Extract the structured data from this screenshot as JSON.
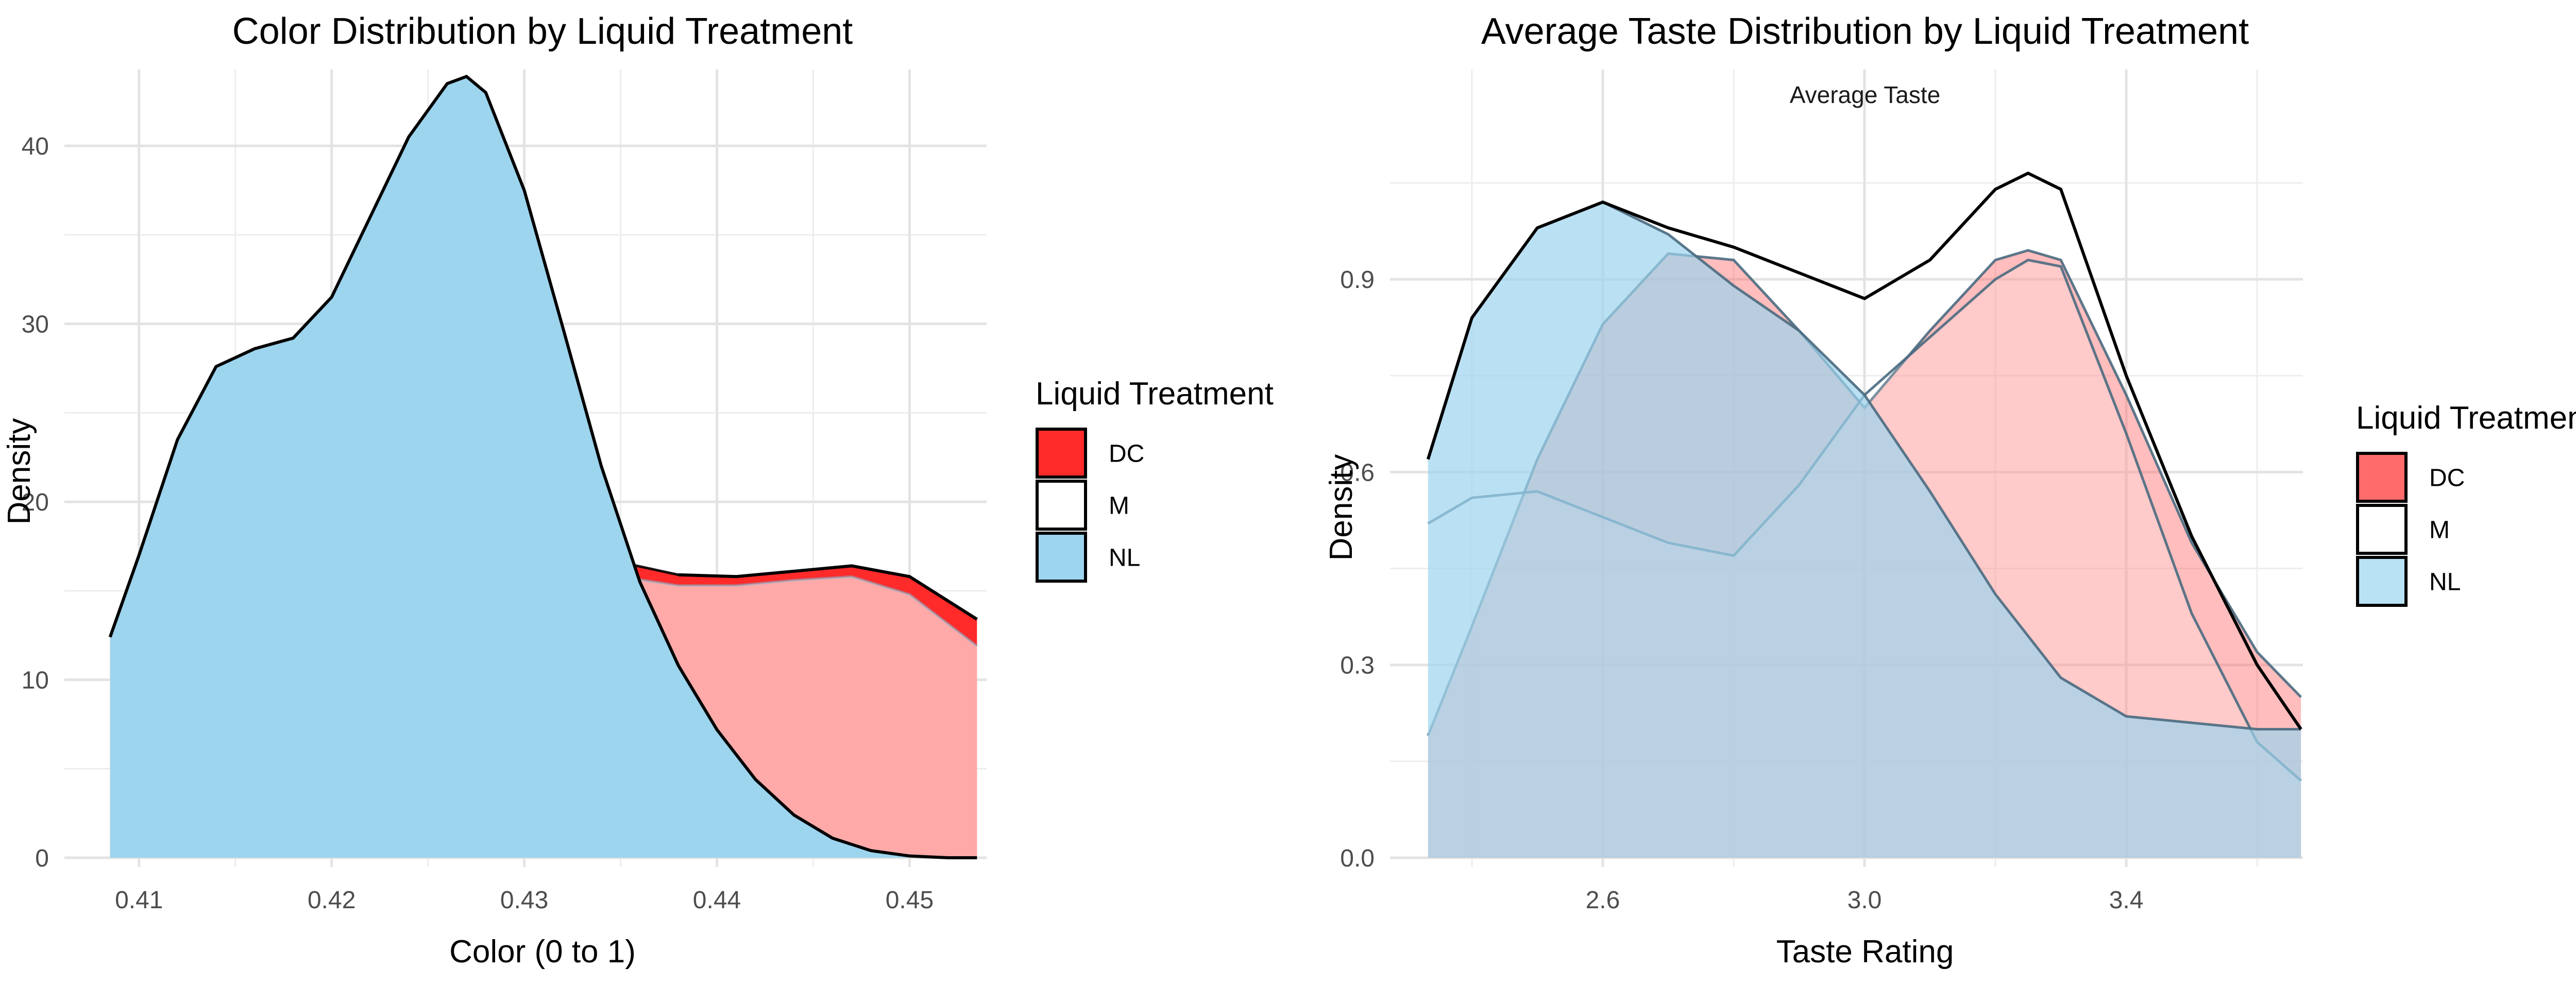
{
  "chart_data": [
    {
      "type": "area",
      "title": "Color Distribution by Liquid Treatment",
      "xlabel": "Color (0 to 1)",
      "ylabel": "Density",
      "xlim": [
        0.408,
        0.454
      ],
      "ylim": [
        0,
        44
      ],
      "x_ticks": [
        0.41,
        0.42,
        0.43,
        0.44,
        0.45
      ],
      "x_tick_labels": [
        "0.41",
        "0.42",
        "0.43",
        "0.44",
        "0.45"
      ],
      "y_ticks": [
        0,
        10,
        20,
        30,
        40
      ],
      "y_tick_labels": [
        "0",
        "10",
        "20",
        "30",
        "40"
      ],
      "grid": true,
      "legend": {
        "title": "Liquid Treatment",
        "position": "right",
        "entries": [
          {
            "label": "DC",
            "color": "#ff2a2a"
          },
          {
            "label": "M",
            "color": "#ffffff"
          },
          {
            "label": "NL",
            "color": "#9dd4ee"
          }
        ]
      },
      "series": [
        {
          "name": "DC",
          "color": "#ff2a2a",
          "fill_opacity": 1,
          "x": [
            0.4085,
            0.411,
            0.414,
            0.417,
            0.42,
            0.423,
            0.426,
            0.429,
            0.432,
            0.435,
            0.438,
            0.441,
            0.444,
            0.447,
            0.45,
            0.4535
          ],
          "y": [
            12.4,
            16.0,
            18.8,
            20.2,
            20.8,
            20.6,
            19.9,
            18.9,
            17.7,
            16.6,
            15.9,
            15.8,
            16.1,
            16.4,
            15.8,
            13.4
          ]
        },
        {
          "name": "M",
          "color": "#ffffff",
          "fill_opacity": 0.6,
          "x": [
            0.4085,
            0.411,
            0.414,
            0.417,
            0.42,
            0.423,
            0.426,
            0.429,
            0.432,
            0.435,
            0.438,
            0.441,
            0.444,
            0.447,
            0.45,
            0.4535
          ],
          "y": [
            12.4,
            17.0,
            21.5,
            24.4,
            25.6,
            25.1,
            23.0,
            20.0,
            17.3,
            15.8,
            15.3,
            15.3,
            15.6,
            15.8,
            14.8,
            11.9
          ]
        },
        {
          "name": "NL",
          "color": "#9dd4ee",
          "fill_opacity": 1,
          "x": [
            0.4085,
            0.41,
            0.412,
            0.414,
            0.416,
            0.418,
            0.42,
            0.422,
            0.424,
            0.426,
            0.427,
            0.428,
            0.43,
            0.432,
            0.434,
            0.436,
            0.438,
            0.44,
            0.442,
            0.444,
            0.446,
            0.448,
            0.45,
            0.452,
            0.4535
          ],
          "y": [
            12.4,
            17.0,
            23.5,
            27.6,
            28.6,
            29.2,
            31.5,
            36.0,
            40.5,
            43.5,
            43.9,
            43.0,
            37.5,
            29.8,
            22.0,
            15.5,
            10.8,
            7.2,
            4.4,
            2.4,
            1.1,
            0.4,
            0.1,
            0.0,
            0.0
          ]
        }
      ]
    },
    {
      "type": "area",
      "title": "Average Taste Distribution by Liquid Treatment",
      "facet_label": "Average Taste",
      "xlabel": "Taste Rating",
      "ylabel": "Density",
      "xlim": [
        2.33,
        3.67
      ],
      "ylim": [
        0,
        1.07
      ],
      "x_ticks": [
        2.6,
        3.0,
        3.4
      ],
      "x_tick_labels": [
        "2.6",
        "3.0",
        "3.4"
      ],
      "y_ticks": [
        0.0,
        0.3,
        0.6,
        0.9
      ],
      "y_tick_labels": [
        "0.0",
        "0.3",
        "0.6",
        "0.9"
      ],
      "grid": true,
      "legend": {
        "title": "Liquid Treatment",
        "position": "right",
        "entries": [
          {
            "label": "DC",
            "color": "#ff6b6b"
          },
          {
            "label": "M",
            "color": "#ffffff"
          },
          {
            "label": "NL",
            "color": "#b9e2f5"
          }
        ]
      },
      "series": [
        {
          "name": "DC",
          "color": "#ff5a5a",
          "fill_opacity": 0.4,
          "x": [
            2.333,
            2.4,
            2.5,
            2.6,
            2.7,
            2.8,
            2.9,
            3.0,
            3.1,
            3.2,
            3.25,
            3.3,
            3.4,
            3.5,
            3.6,
            3.667
          ],
          "y": [
            0.19,
            0.36,
            0.62,
            0.83,
            0.94,
            0.93,
            0.82,
            0.7,
            0.82,
            0.93,
            0.945,
            0.93,
            0.72,
            0.49,
            0.32,
            0.25
          ]
        },
        {
          "name": "M",
          "color": "#ffffff",
          "fill_opacity": 0.2,
          "x": [
            2.333,
            2.4,
            2.5,
            2.6,
            2.7,
            2.8,
            2.9,
            3.0,
            3.1,
            3.2,
            3.25,
            3.3,
            3.4,
            3.5,
            3.6,
            3.667
          ],
          "y": [
            0.52,
            0.56,
            0.57,
            0.53,
            0.49,
            0.47,
            0.58,
            0.72,
            0.81,
            0.9,
            0.93,
            0.92,
            0.66,
            0.38,
            0.18,
            0.12
          ]
        },
        {
          "name": "NL",
          "color": "#9dd4ee",
          "fill_opacity": 0.7,
          "x": [
            2.333,
            2.4,
            2.5,
            2.6,
            2.7,
            2.8,
            2.9,
            3.0,
            3.1,
            3.2,
            3.3,
            3.4,
            3.5,
            3.6,
            3.667
          ],
          "y": [
            0.62,
            0.84,
            0.98,
            1.02,
            0.97,
            0.89,
            0.82,
            0.72,
            0.57,
            0.41,
            0.28,
            0.22,
            0.21,
            0.2,
            0.2
          ]
        }
      ],
      "stacked_total": {
        "color": "#000000",
        "x": [
          2.333,
          2.4,
          2.5,
          2.6,
          2.7,
          2.8,
          2.9,
          3.0,
          3.1,
          3.2,
          3.25,
          3.3,
          3.4,
          3.5,
          3.6,
          3.667
        ],
        "y": [
          0.62,
          0.84,
          0.98,
          1.02,
          0.98,
          0.95,
          0.91,
          0.87,
          0.93,
          1.04,
          1.065,
          1.04,
          0.75,
          0.5,
          0.3,
          0.2
        ]
      }
    }
  ]
}
